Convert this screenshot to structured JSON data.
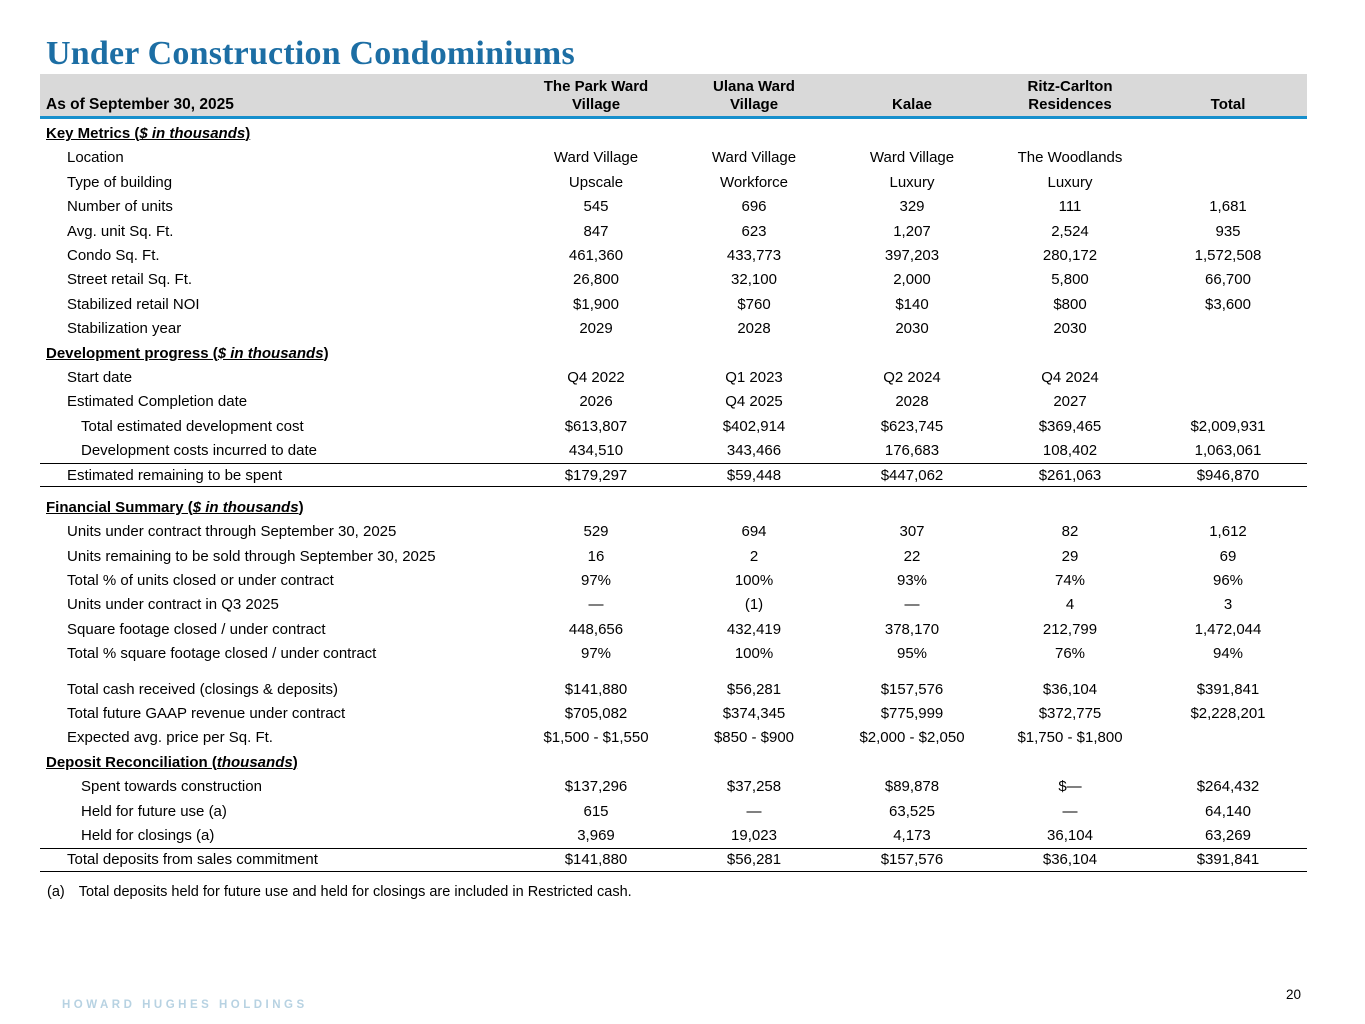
{
  "title": "Under Construction Condominiums",
  "colors": {
    "title_blue": "#1C6EA4",
    "header_line_blue": "#168FCC",
    "header_bg_gray": "#D9D9D9",
    "brand_light_blue": "#B7D2E2"
  },
  "table": {
    "header": {
      "label": "As of September 30, 2025",
      "columns": [
        "The Park Ward\nVillage",
        "Ulana Ward\nVillage",
        "Kalae",
        "Ritz-Carlton\nResidences",
        "Total"
      ]
    },
    "rows": [
      {
        "type": "section",
        "prefix": "Key Metrics",
        "paren": "$ in thousands"
      },
      {
        "type": "data",
        "label": "Location",
        "values": [
          "Ward Village",
          "Ward Village",
          "Ward Village",
          "The Woodlands",
          ""
        ]
      },
      {
        "type": "data",
        "label": "Type of building",
        "values": [
          "Upscale",
          "Workforce",
          "Luxury",
          "Luxury",
          ""
        ]
      },
      {
        "type": "data",
        "label": "Number of units",
        "values": [
          "545",
          "696",
          "329",
          "111",
          "1,681"
        ]
      },
      {
        "type": "data",
        "label": "Avg. unit Sq. Ft.",
        "values": [
          "847",
          "623",
          "1,207",
          "2,524",
          "935"
        ]
      },
      {
        "type": "data",
        "label": "Condo Sq. Ft.",
        "values": [
          "461,360",
          "433,773",
          "397,203",
          "280,172",
          "1,572,508"
        ]
      },
      {
        "type": "data",
        "label": "Street retail Sq. Ft.",
        "values": [
          "26,800",
          "32,100",
          "2,000",
          "5,800",
          "66,700"
        ]
      },
      {
        "type": "data",
        "label": "Stabilized retail NOI",
        "values": [
          "$1,900",
          "$760",
          "$140",
          "$800",
          "$3,600"
        ]
      },
      {
        "type": "data",
        "label": "Stabilization year",
        "values": [
          "2029",
          "2028",
          "2030",
          "2030",
          ""
        ]
      },
      {
        "type": "section",
        "prefix": "Development progress",
        "paren": "$ in thousands"
      },
      {
        "type": "data",
        "label": "Start date",
        "values": [
          "Q4 2022",
          "Q1 2023",
          "Q2 2024",
          "Q4 2024",
          ""
        ]
      },
      {
        "type": "data",
        "label": "Estimated Completion date",
        "values": [
          "2026",
          "Q4 2025",
          "2028",
          "2027",
          ""
        ]
      },
      {
        "type": "data",
        "indent": 2,
        "label": "Total estimated development cost",
        "values": [
          "$613,807",
          "$402,914",
          "$623,745",
          "$369,465",
          "$2,009,931"
        ]
      },
      {
        "type": "data",
        "indent": 2,
        "label": "Development costs incurred to date",
        "values": [
          "434,510",
          "343,466",
          "176,683",
          "108,402",
          "1,063,061"
        ]
      },
      {
        "type": "total",
        "label": "Estimated remaining to be spent",
        "values": [
          "$179,297",
          "$59,448",
          "$447,062",
          "$261,063",
          "$946,870"
        ]
      },
      {
        "type": "spacer",
        "h": 8
      },
      {
        "type": "section",
        "prefix": "Financial Summary",
        "paren": "$ in thousands"
      },
      {
        "type": "data",
        "label": "Units under contract through September 30, 2025",
        "values": [
          "529",
          "694",
          "307",
          "82",
          "1,612"
        ]
      },
      {
        "type": "data",
        "label": "Units remaining to be sold through September 30, 2025",
        "values": [
          "16",
          "2",
          "22",
          "29",
          "69"
        ]
      },
      {
        "type": "data",
        "label": "Total % of units closed or under contract",
        "values": [
          "97%",
          "100%",
          "93%",
          "74%",
          "96%"
        ]
      },
      {
        "type": "data",
        "label": "Units under contract in Q3 2025",
        "values": [
          "—",
          "(1)",
          "—",
          "4",
          "3"
        ]
      },
      {
        "type": "data",
        "label": "Square footage closed / under contract",
        "values": [
          "448,656",
          "432,419",
          "378,170",
          "212,799",
          "1,472,044"
        ]
      },
      {
        "type": "data",
        "label": "Total % square footage closed / under contract",
        "values": [
          "97%",
          "100%",
          "95%",
          "76%",
          "94%"
        ]
      },
      {
        "type": "spacer",
        "h": 11
      },
      {
        "type": "data",
        "label": "Total cash received (closings & deposits)",
        "values": [
          "$141,880",
          "$56,281",
          "$157,576",
          "$36,104",
          "$391,841"
        ]
      },
      {
        "type": "data",
        "label": "Total future GAAP revenue under contract",
        "values": [
          "$705,082",
          "$374,345",
          "$775,999",
          "$372,775",
          "$2,228,201"
        ]
      },
      {
        "type": "data",
        "label": "Expected avg. price per Sq. Ft.",
        "values": [
          "$1,500 - $1,550",
          "$850 - $900",
          "$2,000 - $2,050",
          "$1,750 - $1,800",
          ""
        ]
      },
      {
        "type": "section",
        "prefix": "Deposit Reconciliation",
        "paren": "thousands"
      },
      {
        "type": "data",
        "indent": 2,
        "label": "Spent towards construction",
        "values": [
          "$137,296",
          "$37,258",
          "$89,878",
          "$—",
          "$264,432"
        ]
      },
      {
        "type": "data",
        "indent": 2,
        "label": "Held for future use (a)",
        "values": [
          "615",
          "—",
          "63,525",
          "—",
          "64,140"
        ]
      },
      {
        "type": "data",
        "indent": 2,
        "label": "Held for closings (a)",
        "values": [
          "3,969",
          "19,023",
          "4,173",
          "36,104",
          "63,269"
        ]
      },
      {
        "type": "total",
        "label": "Total deposits from sales commitment",
        "values": [
          "$141,880",
          "$56,281",
          "$157,576",
          "$36,104",
          "$391,841"
        ]
      }
    ]
  },
  "footnote": {
    "marker": "(a)",
    "text": "Total deposits held for future use and held for closings are included in Restricted cash."
  },
  "footer": {
    "brand": "HOWARD HUGHES HOLDINGS",
    "page": "20"
  }
}
